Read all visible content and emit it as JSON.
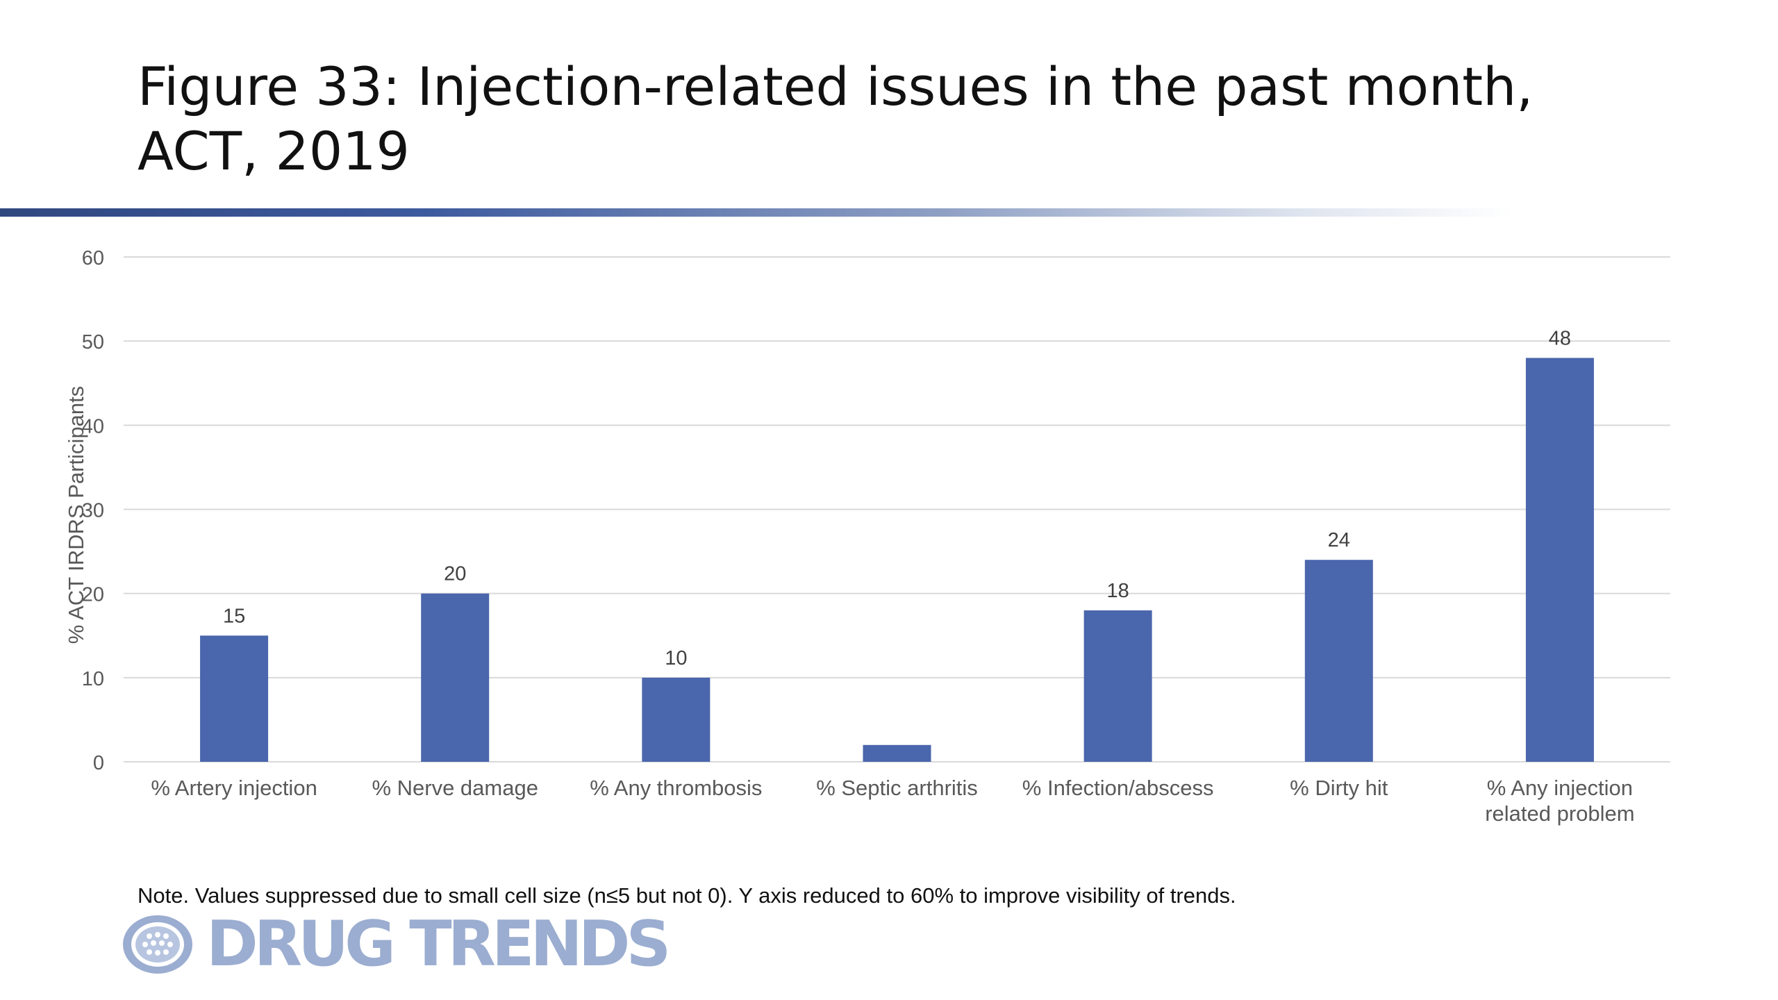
{
  "figure_title": "Figure 33: Injection-related issues in the past month, ACT, 2019",
  "note": "Note. Values suppressed due to small cell size (n≤5 but not 0). Y axis reduced to 60% to improve visibility of trends.",
  "logo_text": "DRUG TRENDS",
  "colors": {
    "bar": "#4a66ac",
    "grid": "#d9d9d9",
    "axis_text": "#595959",
    "title_rule_start": "#31477f",
    "logo": "#9badd0"
  },
  "icons": {
    "logo_mark": "globe-icon"
  },
  "chart_data": {
    "type": "bar",
    "ylabel": "% ACT IRDRS Participants",
    "xlabel": "",
    "ylim": [
      0,
      60
    ],
    "yticks": [
      0,
      10,
      20,
      30,
      40,
      50,
      60
    ],
    "grid": true,
    "categories": [
      [
        "% Artery injection"
      ],
      [
        "% Nerve damage"
      ],
      [
        "% Any thrombosis"
      ],
      [
        "% Septic arthritis"
      ],
      [
        "% Infection/abscess"
      ],
      [
        "% Dirty hit"
      ],
      [
        "% Any injection",
        "related problem"
      ]
    ],
    "values": [
      15,
      20,
      10,
      2,
      18,
      24,
      48
    ],
    "data_labels": [
      "15",
      "20",
      "10",
      "",
      "18",
      "24",
      "48"
    ]
  }
}
